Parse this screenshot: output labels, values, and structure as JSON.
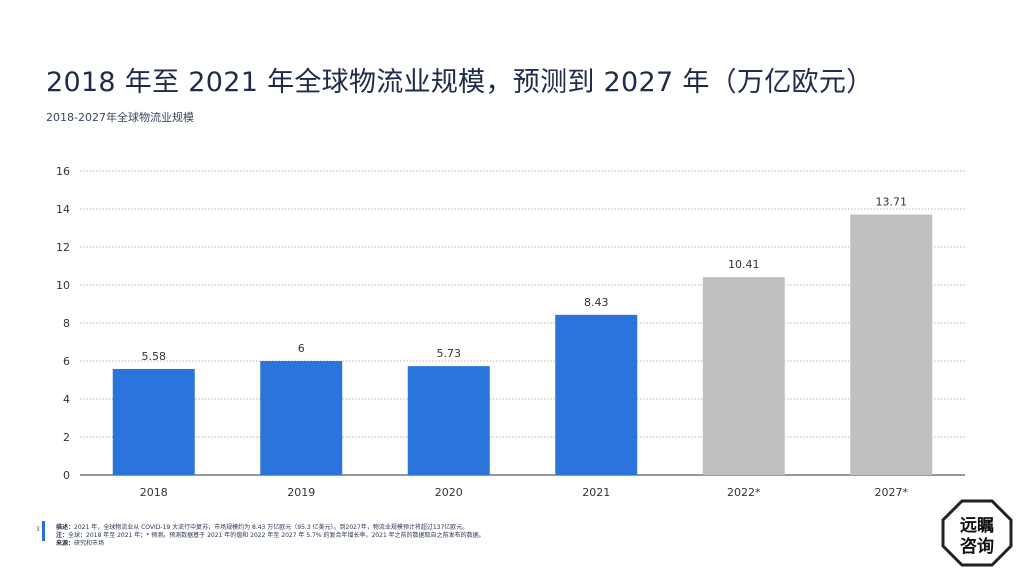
{
  "title": "2018 年至 2021 年全球物流业规模，预测到 2027 年（万亿欧元）",
  "subtitle": "2018-2027年全球物流业规模",
  "page_number": "3",
  "notes": {
    "desc_label": "描述：",
    "desc_text": "2021 年，全球物流业从 COVID-19 大流行中复苏，市场规模约为 8.43 万亿欧元（95.3 亿美元）。到2027年，物流业规模预计将超过137亿欧元。",
    "note_label": "注：",
    "note_text": "全球；2018 年至 2021 年；* 预测。预测数据基于 2021 年的值和 2022 年至 2027 年 5.7% 的复合年增长率。2021 年之前的数据取自之前发布的数据。",
    "source_label": "来源：",
    "source_text": "研究和市场"
  },
  "logo": {
    "line1": "远瞩",
    "line2": "咨询"
  },
  "colors": {
    "actual": "#2a74dc",
    "forecast": "#c0c0c0",
    "grid": "#8a8a8a"
  },
  "chart_data": {
    "type": "bar",
    "categories": [
      "2018",
      "2019",
      "2020",
      "2021",
      "2022*",
      "2027*"
    ],
    "values": [
      5.58,
      6,
      5.73,
      8.43,
      10.41,
      13.71
    ],
    "value_labels": [
      "5.58",
      "6",
      "5.73",
      "8.43",
      "10.41",
      "13.71"
    ],
    "forecast": [
      false,
      false,
      false,
      false,
      true,
      true
    ],
    "ylim": [
      0,
      16
    ],
    "yticks": [
      "0",
      "2",
      "4",
      "6",
      "8",
      "10",
      "12",
      "14",
      "16"
    ],
    "grid": true,
    "xlabel": "",
    "ylabel": ""
  }
}
